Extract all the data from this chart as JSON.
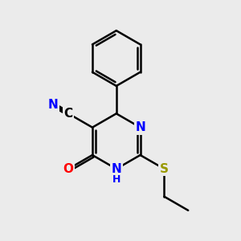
{
  "background_color": "#ebebeb",
  "bond_color": "#000000",
  "bond_width": 1.8,
  "atom_colors": {
    "N": "#0000ff",
    "O": "#ff0000",
    "S": "#999900",
    "C": "#000000"
  },
  "font_size_atoms": 11,
  "font_size_H": 9
}
